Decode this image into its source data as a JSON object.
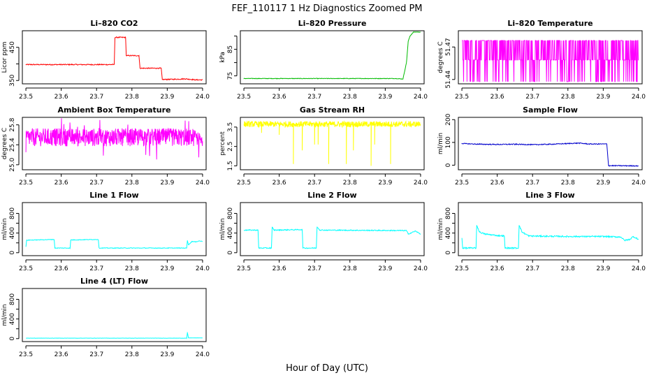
{
  "page": {
    "title": "FEF_110117  1 Hz Diagnostics Zoomed PM",
    "xlabel": "Hour of Day (UTC)"
  },
  "chart_data": [
    {
      "id": "co2",
      "type": "line",
      "title": "Li–820 CO2",
      "ylabel": "Licor ppm",
      "color": "#ff0000",
      "xlim": [
        23.49,
        24.01
      ],
      "ylim": [
        340,
        500
      ],
      "yticks": [
        350,
        400,
        450
      ],
      "ytick_labels": [
        "350",
        "",
        "450"
      ],
      "xticks": [
        23.5,
        23.6,
        23.7,
        23.8,
        23.9,
        24.0
      ],
      "xtick_labels": [
        "23.5",
        "23.6",
        "23.7",
        "23.8",
        "23.9",
        "24.0"
      ],
      "series": [
        {
          "name": "CO2",
          "segments": [
            [
              23.5,
              398
            ],
            [
              23.75,
              398
            ],
            [
              23.752,
              480
            ],
            [
              23.782,
              480
            ],
            [
              23.784,
              425
            ],
            [
              23.82,
              425
            ],
            [
              23.823,
              387
            ],
            [
              23.883,
              387
            ],
            [
              23.886,
              353
            ],
            [
              23.93,
              354
            ],
            [
              23.95,
              355
            ],
            [
              23.98,
              352
            ],
            [
              24.0,
              352
            ]
          ],
          "noise": 1.5
        }
      ]
    },
    {
      "id": "pressure",
      "type": "line",
      "title": "Li–820 Pressure",
      "ylabel": "kPa",
      "color": "#00bb00",
      "xlim": [
        23.49,
        24.01
      ],
      "ylim": [
        72,
        92
      ],
      "yticks": [
        75,
        80,
        85,
        90
      ],
      "ytick_labels": [
        "75",
        "",
        "85",
        ""
      ],
      "xticks": [
        23.5,
        23.6,
        23.7,
        23.8,
        23.9,
        24.0
      ],
      "xtick_labels": [
        "23.5",
        "23.6",
        "23.7",
        "23.8",
        "23.9",
        "24.0"
      ],
      "series": [
        {
          "name": "Pressure",
          "segments": [
            [
              23.5,
              74.0
            ],
            [
              23.93,
              74.0
            ],
            [
              23.95,
              73.8
            ],
            [
              23.96,
              80
            ],
            [
              23.965,
              88
            ],
            [
              23.97,
              90
            ],
            [
              23.98,
              91.5
            ],
            [
              24.0,
              91.5
            ]
          ],
          "noise": 0.1
        }
      ]
    },
    {
      "id": "li_temp",
      "type": "line",
      "title": "Li–820 Temperature",
      "ylabel": "degrees C",
      "color": "#ff00ff",
      "xlim": [
        23.49,
        24.01
      ],
      "ylim": [
        51.436,
        51.485
      ],
      "yticks": [
        51.44,
        51.47
      ],
      "ytick_labels": [
        "51.44",
        "51.47"
      ],
      "xticks": [
        23.5,
        23.6,
        23.7,
        23.8,
        23.9,
        24.0
      ],
      "xtick_labels": [
        "23.5",
        "23.6",
        "23.7",
        "23.8",
        "23.9",
        "24.0"
      ],
      "series": [
        {
          "name": "Temperature",
          "levels": [
            51.438,
            51.458,
            51.476
          ],
          "base": 51.458
        }
      ]
    },
    {
      "id": "ambient",
      "type": "line",
      "title": "Ambient Box Temperature",
      "ylabel": "degrees C",
      "color": "#ff00ff",
      "xlim": [
        23.49,
        24.01
      ],
      "ylim": [
        24.9,
        25.95
      ],
      "yticks": [
        25.0,
        25.4,
        25.8
      ],
      "ytick_labels": [
        "25.0",
        "25.4",
        "25.8"
      ],
      "xticks": [
        23.5,
        23.6,
        23.7,
        23.8,
        23.9,
        24.0
      ],
      "xtick_labels": [
        "23.5",
        "23.6",
        "23.7",
        "23.8",
        "23.9",
        "24.0"
      ],
      "series": [
        {
          "name": "Ambient",
          "base": 25.55,
          "band": 0.18,
          "spikes": 0.45
        }
      ]
    },
    {
      "id": "rh",
      "type": "line",
      "title": "Gas Stream RH",
      "ylabel": "percent",
      "color": "#ffff00",
      "xlim": [
        23.49,
        24.01
      ],
      "ylim": [
        1.3,
        4.0
      ],
      "yticks": [
        1.5,
        2.5,
        3.5
      ],
      "ytick_labels": [
        "1.5",
        "2.5",
        "3.5"
      ],
      "xticks": [
        23.5,
        23.6,
        23.7,
        23.8,
        23.9,
        24.0
      ],
      "xtick_labels": [
        "23.5",
        "23.6",
        "23.7",
        "23.8",
        "23.9",
        "24.0"
      ],
      "series": [
        {
          "name": "RH",
          "base": 3.65,
          "band": 0.15,
          "dips": [
            [
              23.64,
              1.6
            ],
            [
              23.665,
              2.3
            ],
            [
              23.7,
              2.6
            ],
            [
              23.71,
              2.6
            ],
            [
              23.74,
              1.6
            ],
            [
              23.79,
              1.6
            ],
            [
              23.81,
              2.3
            ],
            [
              23.86,
              1.5
            ],
            [
              23.87,
              2.6
            ],
            [
              23.915,
              1.6
            ],
            [
              23.6,
              3.1
            ],
            [
              23.55,
              3.2
            ]
          ]
        }
      ]
    },
    {
      "id": "sample",
      "type": "line",
      "title": "Sample Flow",
      "ylabel": "ml/min",
      "color": "#0000cc",
      "xlim": [
        23.49,
        24.01
      ],
      "ylim": [
        -20,
        210
      ],
      "yticks": [
        0,
        100,
        200
      ],
      "ytick_labels": [
        "0",
        "100",
        "200"
      ],
      "xticks": [
        23.5,
        23.6,
        23.7,
        23.8,
        23.9,
        24.0
      ],
      "xtick_labels": [
        "23.5",
        "23.6",
        "23.7",
        "23.8",
        "23.9",
        "24.0"
      ],
      "series": [
        {
          "name": "Sample",
          "segments": [
            [
              23.5,
              95
            ],
            [
              23.55,
              92
            ],
            [
              23.6,
              91
            ],
            [
              23.65,
              92
            ],
            [
              23.7,
              90
            ],
            [
              23.75,
              92
            ],
            [
              23.8,
              95
            ],
            [
              23.83,
              97
            ],
            [
              23.86,
              93
            ],
            [
              23.91,
              93
            ],
            [
              23.915,
              -2
            ],
            [
              24.0,
              -3
            ]
          ],
          "noise": 2
        }
      ]
    },
    {
      "id": "line1",
      "type": "line",
      "title": "Line 1 Flow",
      "ylabel": "ml/min",
      "color": "#00ffff",
      "xlim": [
        23.49,
        24.01
      ],
      "ylim": [
        -60,
        1020
      ],
      "yticks": [
        0,
        200,
        400,
        600,
        800
      ],
      "ytick_labels": [
        "0",
        "",
        "400",
        "",
        "800"
      ],
      "xticks": [
        23.5,
        23.6,
        23.7,
        23.8,
        23.9,
        24.0
      ],
      "xtick_labels": [
        "23.5",
        "23.6",
        "23.7",
        "23.8",
        "23.9",
        "24.0"
      ],
      "series": [
        {
          "name": "Line1",
          "segments": [
            [
              23.5,
              120
            ],
            [
              23.502,
              255
            ],
            [
              23.58,
              270
            ],
            [
              23.582,
              95
            ],
            [
              23.625,
              95
            ],
            [
              23.627,
              260
            ],
            [
              23.705,
              270
            ],
            [
              23.707,
              95
            ],
            [
              23.955,
              95
            ],
            [
              23.957,
              250
            ],
            [
              23.96,
              160
            ],
            [
              23.97,
              230
            ],
            [
              23.98,
              220
            ],
            [
              23.99,
              240
            ],
            [
              24.0,
              230
            ]
          ],
          "noise": 6
        }
      ]
    },
    {
      "id": "line2",
      "type": "line",
      "title": "Line 2 Flow",
      "ylabel": "ml/min",
      "color": "#00ffff",
      "xlim": [
        23.49,
        24.01
      ],
      "ylim": [
        -60,
        1020
      ],
      "yticks": [
        0,
        200,
        400,
        600,
        800
      ],
      "ytick_labels": [
        "0",
        "",
        "400",
        "",
        "800"
      ],
      "xticks": [
        23.5,
        23.6,
        23.7,
        23.8,
        23.9,
        24.0
      ],
      "xtick_labels": [
        "23.5",
        "23.6",
        "23.7",
        "23.8",
        "23.9",
        "24.0"
      ],
      "series": [
        {
          "name": "Line2",
          "segments": [
            [
              23.5,
              460
            ],
            [
              23.54,
              460
            ],
            [
              23.542,
              95
            ],
            [
              23.578,
              95
            ],
            [
              23.58,
              520
            ],
            [
              23.585,
              460
            ],
            [
              23.665,
              470
            ],
            [
              23.667,
              95
            ],
            [
              23.705,
              95
            ],
            [
              23.707,
              530
            ],
            [
              23.715,
              460
            ],
            [
              23.96,
              450
            ],
            [
              23.965,
              380
            ],
            [
              23.975,
              410
            ],
            [
              23.985,
              440
            ],
            [
              23.99,
              420
            ],
            [
              24.0,
              380
            ]
          ],
          "noise": 10
        }
      ]
    },
    {
      "id": "line3",
      "type": "line",
      "title": "Line 3 Flow",
      "ylabel": "ml/min",
      "color": "#00ffff",
      "xlim": [
        23.49,
        24.01
      ],
      "ylim": [
        -60,
        1020
      ],
      "yticks": [
        0,
        200,
        400,
        600,
        800
      ],
      "ytick_labels": [
        "0",
        "",
        "400",
        "",
        "800"
      ],
      "xticks": [
        23.5,
        23.6,
        23.7,
        23.8,
        23.9,
        24.0
      ],
      "xtick_labels": [
        "23.5",
        "23.6",
        "23.7",
        "23.8",
        "23.9",
        "24.0"
      ],
      "series": [
        {
          "name": "Line3",
          "segments": [
            [
              23.5,
              300
            ],
            [
              23.502,
              95
            ],
            [
              23.54,
              95
            ],
            [
              23.542,
              560
            ],
            [
              23.55,
              420
            ],
            [
              23.565,
              380
            ],
            [
              23.6,
              350
            ],
            [
              23.62,
              340
            ],
            [
              23.622,
              95
            ],
            [
              23.66,
              95
            ],
            [
              23.662,
              560
            ],
            [
              23.67,
              420
            ],
            [
              23.69,
              340
            ],
            [
              23.8,
              330
            ],
            [
              23.9,
              330
            ],
            [
              23.95,
              320
            ],
            [
              23.96,
              250
            ],
            [
              23.975,
              270
            ],
            [
              23.985,
              330
            ],
            [
              24.0,
              270
            ]
          ],
          "noise": 14
        }
      ]
    },
    {
      "id": "line4",
      "type": "line",
      "title": "Line 4 (LT) Flow",
      "ylabel": "ml/min",
      "color": "#00ffff",
      "xlim": [
        23.49,
        24.01
      ],
      "ylim": [
        -60,
        1020
      ],
      "yticks": [
        0,
        200,
        400,
        600,
        800
      ],
      "ytick_labels": [
        "0",
        "",
        "400",
        "",
        "800"
      ],
      "xticks": [
        23.5,
        23.6,
        23.7,
        23.8,
        23.9,
        24.0
      ],
      "xtick_labels": [
        "23.5",
        "23.6",
        "23.7",
        "23.8",
        "23.9",
        "24.0"
      ],
      "series": [
        {
          "name": "Line4",
          "segments": [
            [
              23.5,
              10
            ],
            [
              23.955,
              10
            ],
            [
              23.957,
              120
            ],
            [
              23.96,
              15
            ],
            [
              24.0,
              15
            ]
          ],
          "noise": 2
        }
      ]
    }
  ]
}
